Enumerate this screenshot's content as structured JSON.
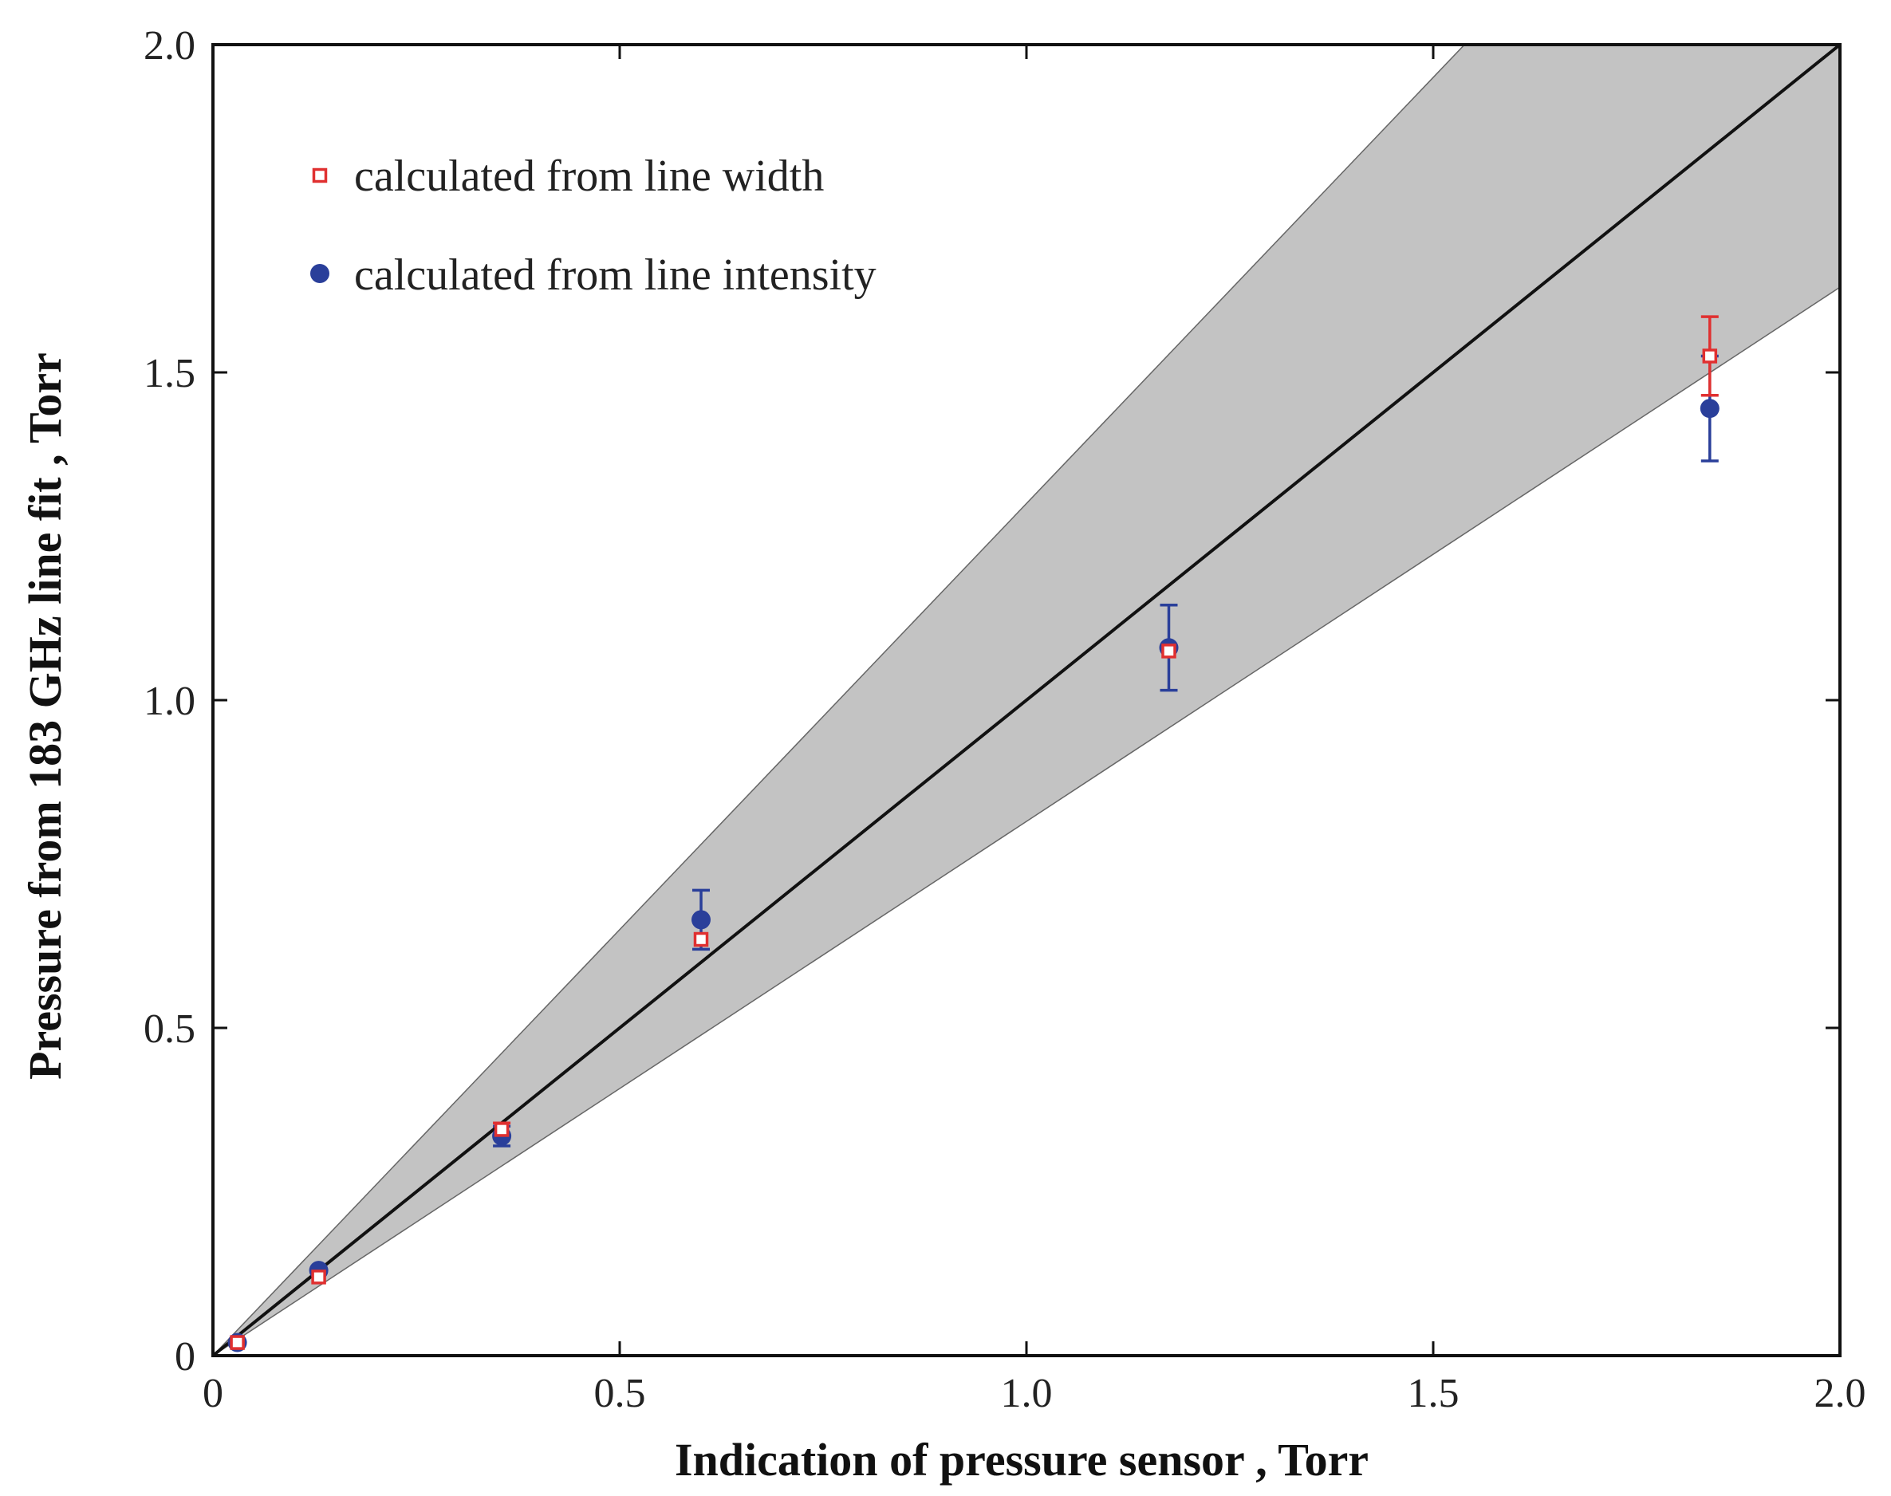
{
  "chart_data": {
    "type": "scatter",
    "title": "",
    "xlabel": "Indication of pressure sensor , Torr",
    "ylabel": "Pressure from 183 GHz line fit , Torr",
    "xlim": [
      0,
      2.0
    ],
    "ylim": [
      0,
      2.0
    ],
    "xticks": [
      0,
      0.5,
      1.0,
      1.5,
      2.0
    ],
    "xtick_labels": [
      "0",
      "0.5",
      "1.0",
      "1.5",
      "2.0"
    ],
    "yticks": [
      0,
      0.5,
      1.0,
      1.5,
      2.0
    ],
    "ytick_labels": [
      "0",
      "0.5",
      "1.0",
      "1.5",
      "2.0"
    ],
    "grid": false,
    "legend_position": "top-left",
    "reference_line": {
      "slope": 1.0,
      "x": [
        0,
        2.0
      ],
      "color": "#111111"
    },
    "band": {
      "color": "#c3c3c3",
      "upper_slope": 1.3,
      "lower_slope": 0.815
    },
    "series": [
      {
        "name": "calculated from line width",
        "marker": "open-square",
        "color": "#e03030",
        "points": [
          {
            "x": 0.03,
            "y": 0.02,
            "err": 0.0
          },
          {
            "x": 0.13,
            "y": 0.12,
            "err": 0.0
          },
          {
            "x": 0.355,
            "y": 0.345,
            "err": 0.01
          },
          {
            "x": 0.6,
            "y": 0.635,
            "err": 0.0
          },
          {
            "x": 1.175,
            "y": 1.075,
            "err": 0.0
          },
          {
            "x": 1.84,
            "y": 1.525,
            "err": 0.06
          }
        ]
      },
      {
        "name": "calculated from line intensity",
        "marker": "filled-circle",
        "color": "#2a3f9a",
        "points": [
          {
            "x": 0.03,
            "y": 0.02,
            "err": 0.0
          },
          {
            "x": 0.13,
            "y": 0.13,
            "err": 0.0
          },
          {
            "x": 0.355,
            "y": 0.335,
            "err": 0.015
          },
          {
            "x": 0.6,
            "y": 0.665,
            "err": 0.045
          },
          {
            "x": 1.175,
            "y": 1.08,
            "err": 0.065
          },
          {
            "x": 1.84,
            "y": 1.445,
            "err": 0.08
          }
        ]
      }
    ]
  }
}
